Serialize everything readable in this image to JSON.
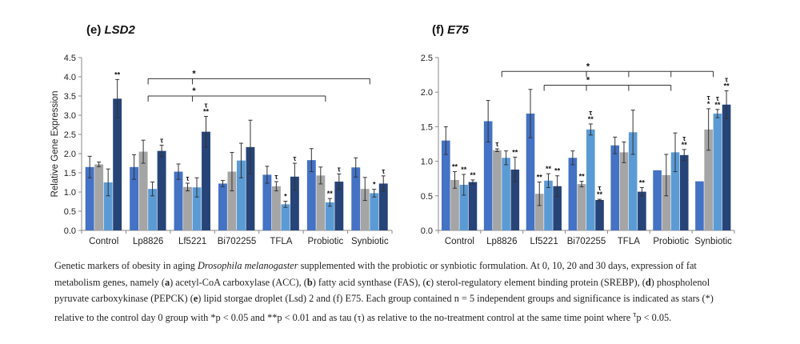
{
  "caption": {
    "lead": "Genetic markers of obesity in aging ",
    "species": "Drosophila melanogaster",
    "p1": " supplemented with the probiotic or synbiotic formulation. At 0, 10, 20 and 30 days, expression of fat metabolism genes, namely (",
    "a": "a",
    "p2": ") acetyl-CoA carboxylase (ACC), (",
    "b": "b",
    "p3": ") fatty acid synthase (FAS), (",
    "c": "c",
    "p4": ") sterol-regulatory element binding protein (SREBP), (",
    "d": "d",
    "p5": ") phospholenol pyruvate carboxykinase (PEPCK) (",
    "e": "e",
    "p6": ") lipid storgae droplet (Lsd) 2 and (f) E75. Each group contained n = 5 independent groups and significance is indicated as stars (*) relative to the control day 0 group with *p < 0.05 and **p < 0.01 and as tau (τ) as relative to the no-treatment control at the same time point where ",
    "tau_sup": "τ",
    "p7": "p < 0.05."
  },
  "colors": {
    "day0": "#4472C4",
    "day10": "#A5A5A5",
    "day20": "#5B9BD5",
    "day30": "#264478",
    "axis": "#888888",
    "text": "#222222"
  },
  "chart_data": [
    {
      "panel": "(e)",
      "gene": "LSD2",
      "type": "bar",
      "ylabel": "Relative Gene Expression",
      "ylim": [
        0,
        4.5
      ],
      "yticks": [
        "0.0",
        "0.5",
        "1.0",
        "1.5",
        "2.0",
        "2.5",
        "3.0",
        "3.5",
        "4.0",
        "4.5"
      ],
      "categories": [
        "Control",
        "Lp8826",
        "Lf5221",
        "Bi702255",
        "TFLA",
        "Probiotic",
        "Synbiotic"
      ],
      "series": [
        {
          "values": [
            1.65,
            1.65,
            1.53,
            1.22,
            1.45,
            1.83,
            1.64
          ],
          "errors": [
            0.28,
            0.32,
            0.2,
            0.08,
            0.22,
            0.3,
            0.25
          ],
          "marks": [
            "",
            "",
            "",
            "",
            "",
            "",
            ""
          ]
        },
        {
          "values": [
            1.72,
            2.05,
            1.13,
            1.53,
            1.15,
            1.43,
            1.08
          ],
          "errors": [
            0.06,
            0.3,
            0.1,
            0.5,
            0.12,
            0.22,
            0.3
          ],
          "marks": [
            "",
            "",
            "τ",
            "",
            "τ",
            "",
            ""
          ]
        },
        {
          "values": [
            1.25,
            1.08,
            1.12,
            1.82,
            0.68,
            0.73,
            0.97
          ],
          "errors": [
            0.35,
            0.18,
            0.25,
            0.45,
            0.08,
            0.1,
            0.1
          ],
          "marks": [
            "",
            "",
            "",
            "",
            "*",
            "**",
            "*"
          ]
        },
        {
          "values": [
            3.43,
            2.07,
            2.57,
            2.17,
            1.4,
            1.27,
            1.22
          ],
          "errors": [
            0.5,
            0.15,
            0.4,
            0.7,
            0.35,
            0.2,
            0.2
          ],
          "marks": [
            "**",
            "τ",
            "τ\n**",
            "",
            "τ",
            "τ",
            "τ"
          ]
        }
      ],
      "brackets": [
        {
          "from": "Lp8826",
          "to": "Synbiotic",
          "ticks": [
            "Lp8826",
            "Lf5221",
            "Synbiotic"
          ],
          "y": 3.95,
          "label": "*"
        },
        {
          "from": "Lp8826",
          "to": "Probiotic",
          "ticks": [
            "Lp8826",
            "Lf5221",
            "Probiotic"
          ],
          "y": 3.5,
          "label": "*"
        }
      ]
    },
    {
      "panel": "(f)",
      "gene": "E75",
      "type": "bar",
      "ylabel": "",
      "ylim": [
        0,
        2.5
      ],
      "yticks": [
        "0.0",
        "0.5",
        "1.0",
        "1.5",
        "2.0",
        "2.5"
      ],
      "categories": [
        "Control",
        "Lp8826",
        "Lf5221",
        "Bi702255",
        "TFLA",
        "Probiotic",
        "Synbiotic"
      ],
      "series": [
        {
          "values": [
            1.3,
            1.58,
            1.69,
            1.05,
            1.23,
            0.87,
            0.71
          ],
          "errors": [
            0.2,
            0.3,
            0.35,
            0.1,
            0.12,
            0.0,
            0.0
          ],
          "marks": [
            "",
            "",
            "",
            "",
            "",
            "",
            ""
          ]
        },
        {
          "values": [
            0.73,
            1.16,
            0.53,
            0.67,
            1.13,
            0.8,
            1.46
          ],
          "errors": [
            0.12,
            0.02,
            0.17,
            0.04,
            0.15,
            0.3,
            0.3
          ],
          "marks": [
            "**",
            "τ",
            "**",
            "**",
            "",
            "",
            "τ\n*"
          ]
        },
        {
          "values": [
            0.66,
            1.05,
            0.72,
            1.46,
            1.42,
            1.13,
            1.69
          ],
          "errors": [
            0.15,
            0.1,
            0.1,
            0.08,
            0.32,
            0.28,
            0.06
          ],
          "marks": [
            "**",
            "",
            "**",
            "τ\n**",
            "",
            "",
            "τ\n**"
          ]
        },
        {
          "values": [
            0.7,
            0.88,
            0.64,
            0.44,
            0.56,
            1.09,
            1.82
          ],
          "errors": [
            0.03,
            0.18,
            0.15,
            0.01,
            0.06,
            0.08,
            0.2
          ],
          "marks": [
            "**",
            "**",
            "**",
            "τ\n**",
            "**",
            "τ\n**",
            "τ\n**"
          ]
        }
      ],
      "brackets": [
        {
          "from": "Lp8826",
          "to": "Synbiotic",
          "ticks": [
            "Lp8826",
            "Bi702255",
            "TFLA",
            "Probiotic",
            "Synbiotic"
          ],
          "y": 2.3,
          "label": "*"
        },
        {
          "from": "Lf5221",
          "to": "Probiotic",
          "ticks": [
            "Lf5221",
            "Bi702255",
            "TFLA",
            "Probiotic"
          ],
          "y": 2.1,
          "label": "*"
        }
      ]
    }
  ]
}
